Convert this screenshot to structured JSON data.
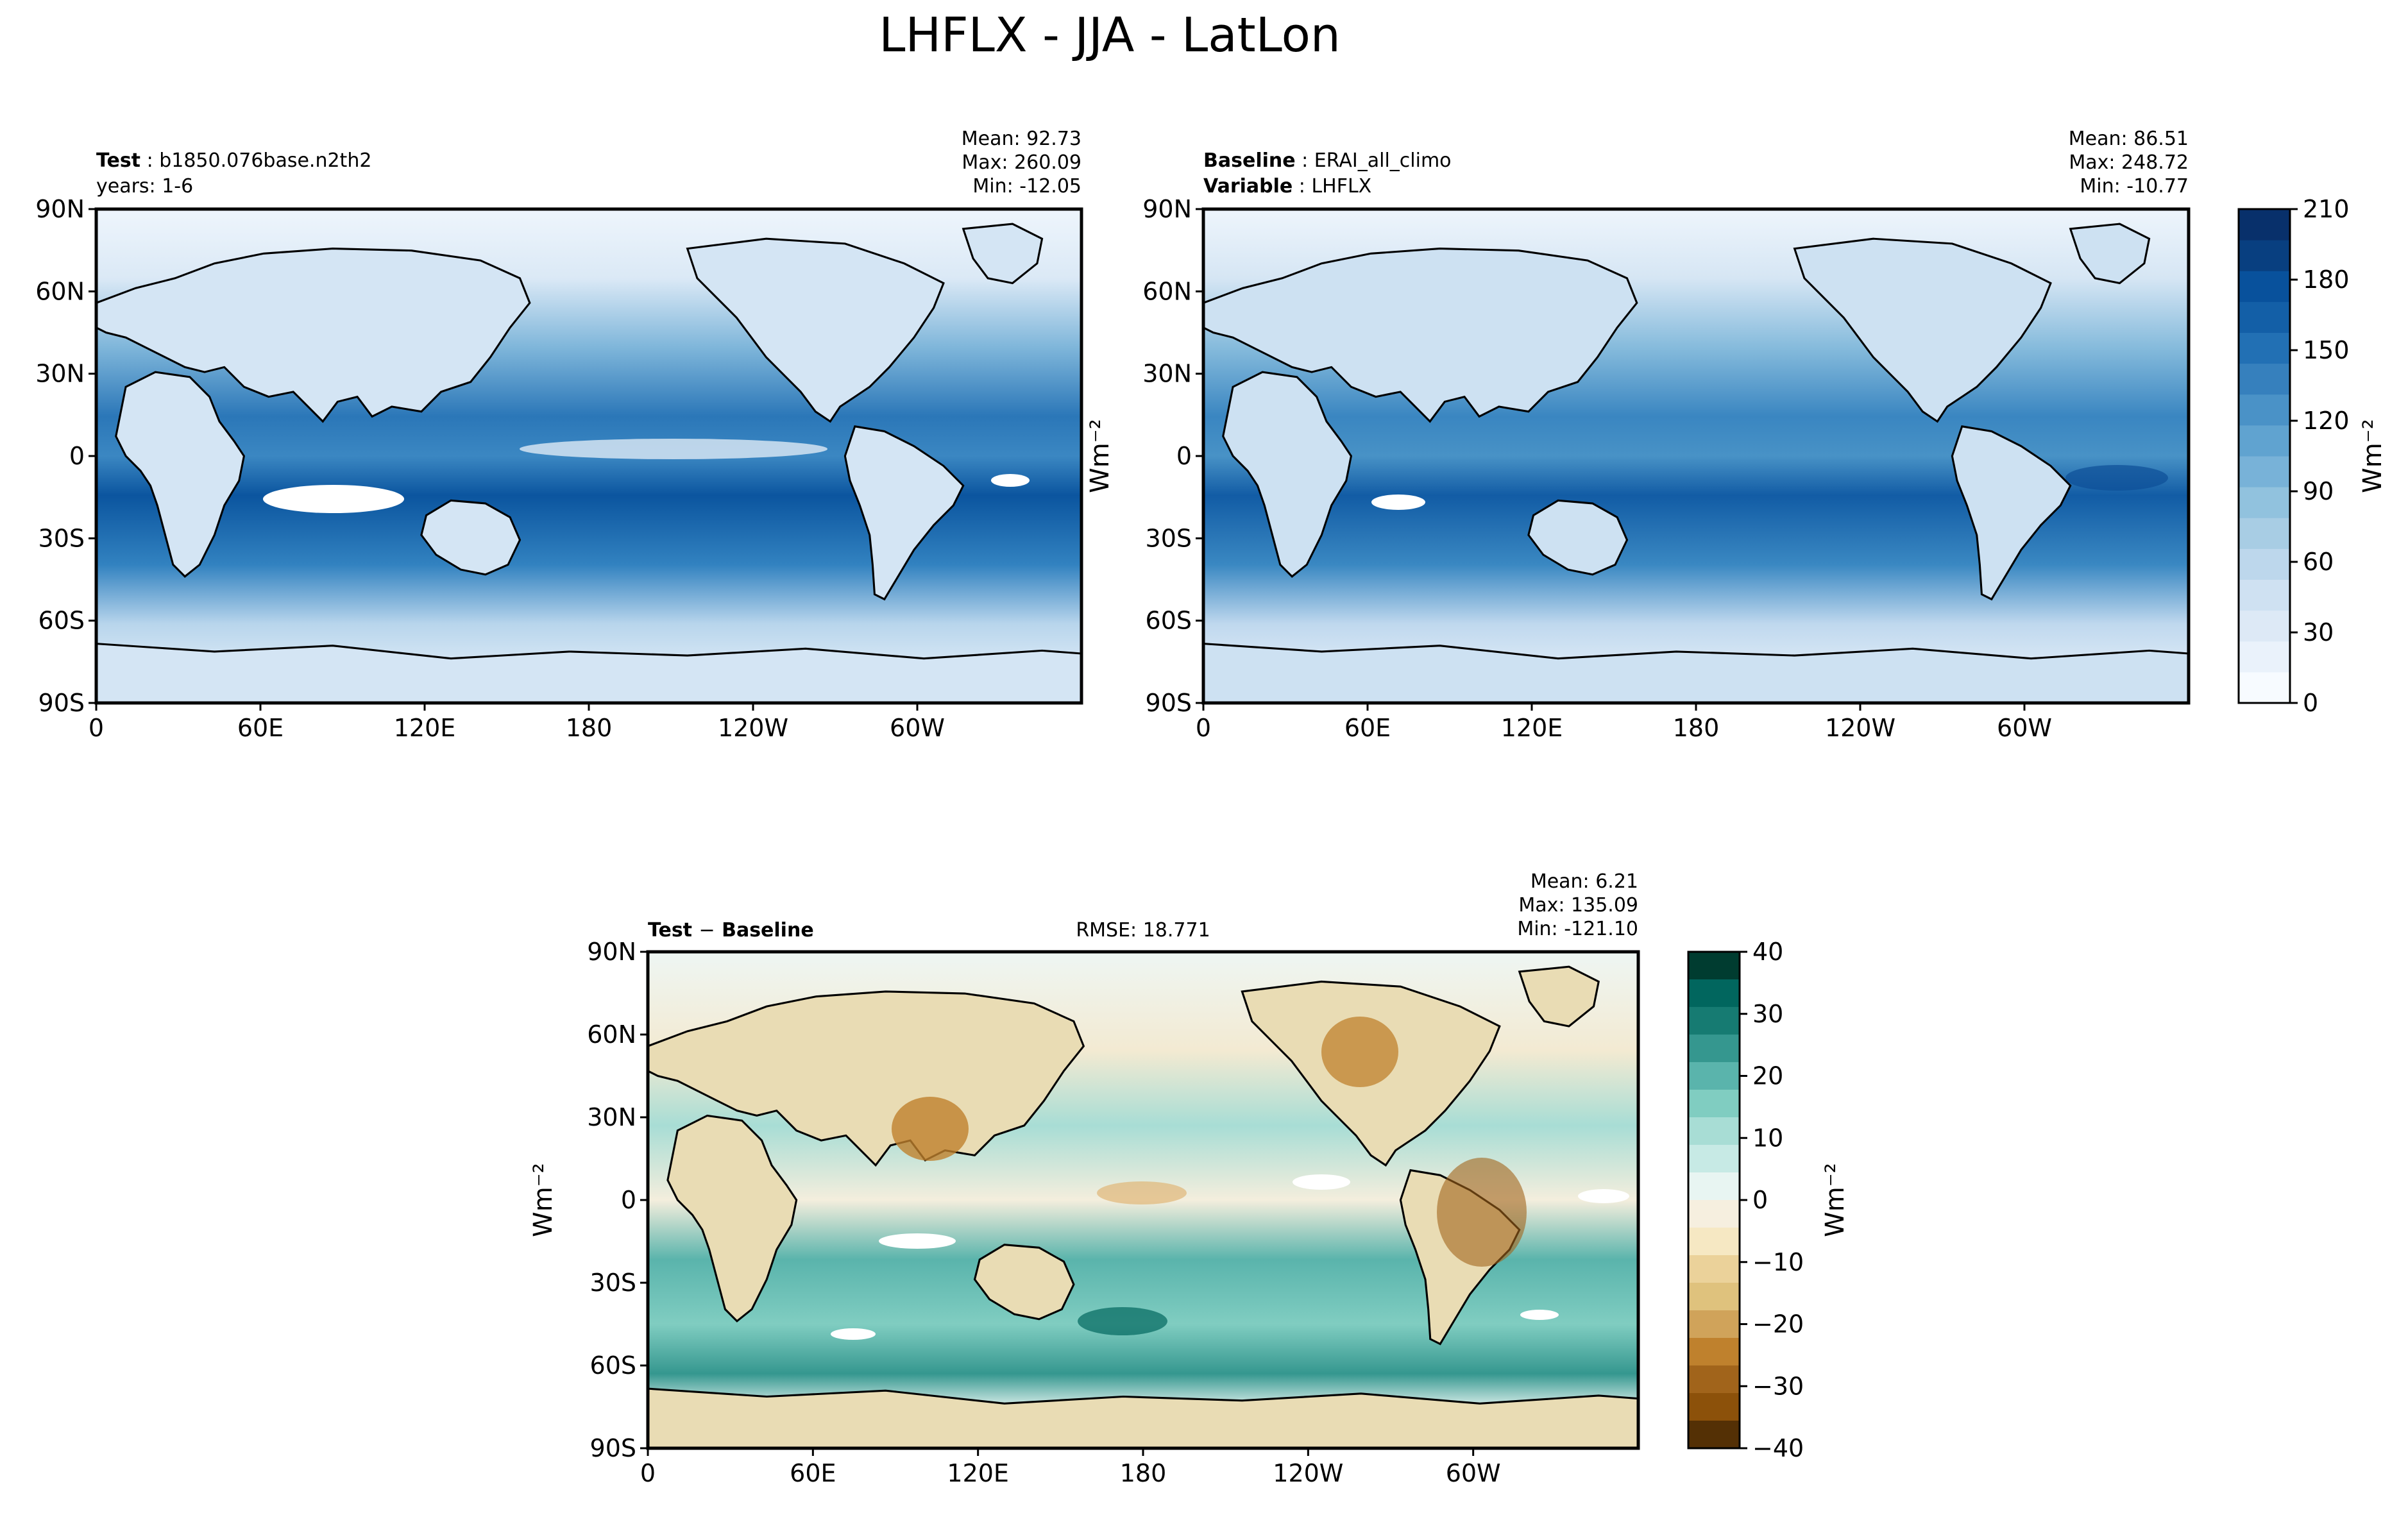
{
  "figure": {
    "title": "LHFLX - JJA - LatLon"
  },
  "panels": {
    "test": {
      "label_bold": "Test",
      "label_value": "b1850.076base.n2th2",
      "line2": "years: 1-6",
      "stats": [
        "Mean: 92.73",
        "Max: 260.09",
        "Min: -12.05"
      ]
    },
    "baseline": {
      "label_bold": "Baseline",
      "label_value": "ERAI_all_climo",
      "line2_bold": "Variable",
      "line2_value": "LHFLX",
      "stats": [
        "Mean: 86.51",
        "Max: 248.72",
        "Min: -10.77"
      ]
    },
    "diff": {
      "label_bold_a": "Test",
      "label_op": "−",
      "label_bold_b": "Baseline",
      "rmse": "RMSE: 18.771",
      "stats": [
        "Mean:  6.21",
        "Max: 135.09",
        "Min: -121.10"
      ],
      "ylabel": "Wm⁻²"
    }
  },
  "axes": {
    "lat_ticks": [
      "90N",
      "60N",
      "30N",
      "0",
      "30S",
      "60S",
      "90S"
    ],
    "lon_ticks": [
      "0",
      "60E",
      "120E",
      "180",
      "120W",
      "60W"
    ]
  },
  "colorbars": {
    "main": {
      "ticks": [
        "0",
        "30",
        "60",
        "90",
        "120",
        "150",
        "180",
        "210"
      ],
      "unit": "Wm⁻²",
      "colors": [
        "#f7fbff",
        "#eaf2fb",
        "#dde9f6",
        "#cfe1f2",
        "#bdd7ec",
        "#a8cde4",
        "#91c2de",
        "#78b2d8",
        "#60a3d0",
        "#4a92c7",
        "#3680bd",
        "#2270b4",
        "#135fa7",
        "#08519c",
        "#083f80",
        "#08306b"
      ]
    },
    "diff": {
      "ticks": [
        "40",
        "30",
        "20",
        "10",
        "0",
        "−10",
        "−20",
        "−30",
        "−40"
      ],
      "unit": "Wm⁻²",
      "colors": [
        "#003c30",
        "#01665e",
        "#167b72",
        "#35978f",
        "#5ab4ac",
        "#80cdc1",
        "#a8ddd5",
        "#c7eae5",
        "#e8f5f2",
        "#f6efdf",
        "#f6e8c3",
        "#ebd29a",
        "#dfc27d",
        "#d0a35a",
        "#bf812d",
        "#a1641b",
        "#8c510a",
        "#543005"
      ]
    }
  },
  "chart_data": [
    {
      "type": "heatmap",
      "title": "",
      "panel": "test",
      "xlabel": "",
      "ylabel": "",
      "x_ticks": [
        "0",
        "60E",
        "120E",
        "180",
        "120W",
        "60W"
      ],
      "y_ticks": [
        "90N",
        "60N",
        "30N",
        "0",
        "30S",
        "60S",
        "90S"
      ],
      "xlim": [
        0,
        360
      ],
      "ylim": [
        -90,
        90
      ],
      "colorbar_range": [
        0,
        210
      ],
      "stats": {
        "mean": 92.73,
        "max": 260.09,
        "min": -12.05
      }
    },
    {
      "type": "heatmap",
      "title": "",
      "panel": "baseline",
      "xlabel": "",
      "ylabel": "",
      "x_ticks": [
        "0",
        "60E",
        "120E",
        "180",
        "120W",
        "60W"
      ],
      "y_ticks": [
        "90N",
        "60N",
        "30N",
        "0",
        "30S",
        "60S",
        "90S"
      ],
      "xlim": [
        0,
        360
      ],
      "ylim": [
        -90,
        90
      ],
      "colorbar_range": [
        0,
        210
      ],
      "stats": {
        "mean": 86.51,
        "max": 248.72,
        "min": -10.77
      }
    },
    {
      "type": "heatmap",
      "title": "",
      "panel": "diff",
      "xlabel": "",
      "ylabel": "Wm⁻²",
      "x_ticks": [
        "0",
        "60E",
        "120E",
        "180",
        "120W",
        "60W"
      ],
      "y_ticks": [
        "90N",
        "60N",
        "30N",
        "0",
        "30S",
        "60S",
        "90S"
      ],
      "xlim": [
        0,
        360
      ],
      "ylim": [
        -90,
        90
      ],
      "colorbar_range": [
        -40,
        40
      ],
      "rmse": 18.771,
      "stats": {
        "mean": 6.21,
        "max": 135.09,
        "min": -121.1
      }
    }
  ]
}
